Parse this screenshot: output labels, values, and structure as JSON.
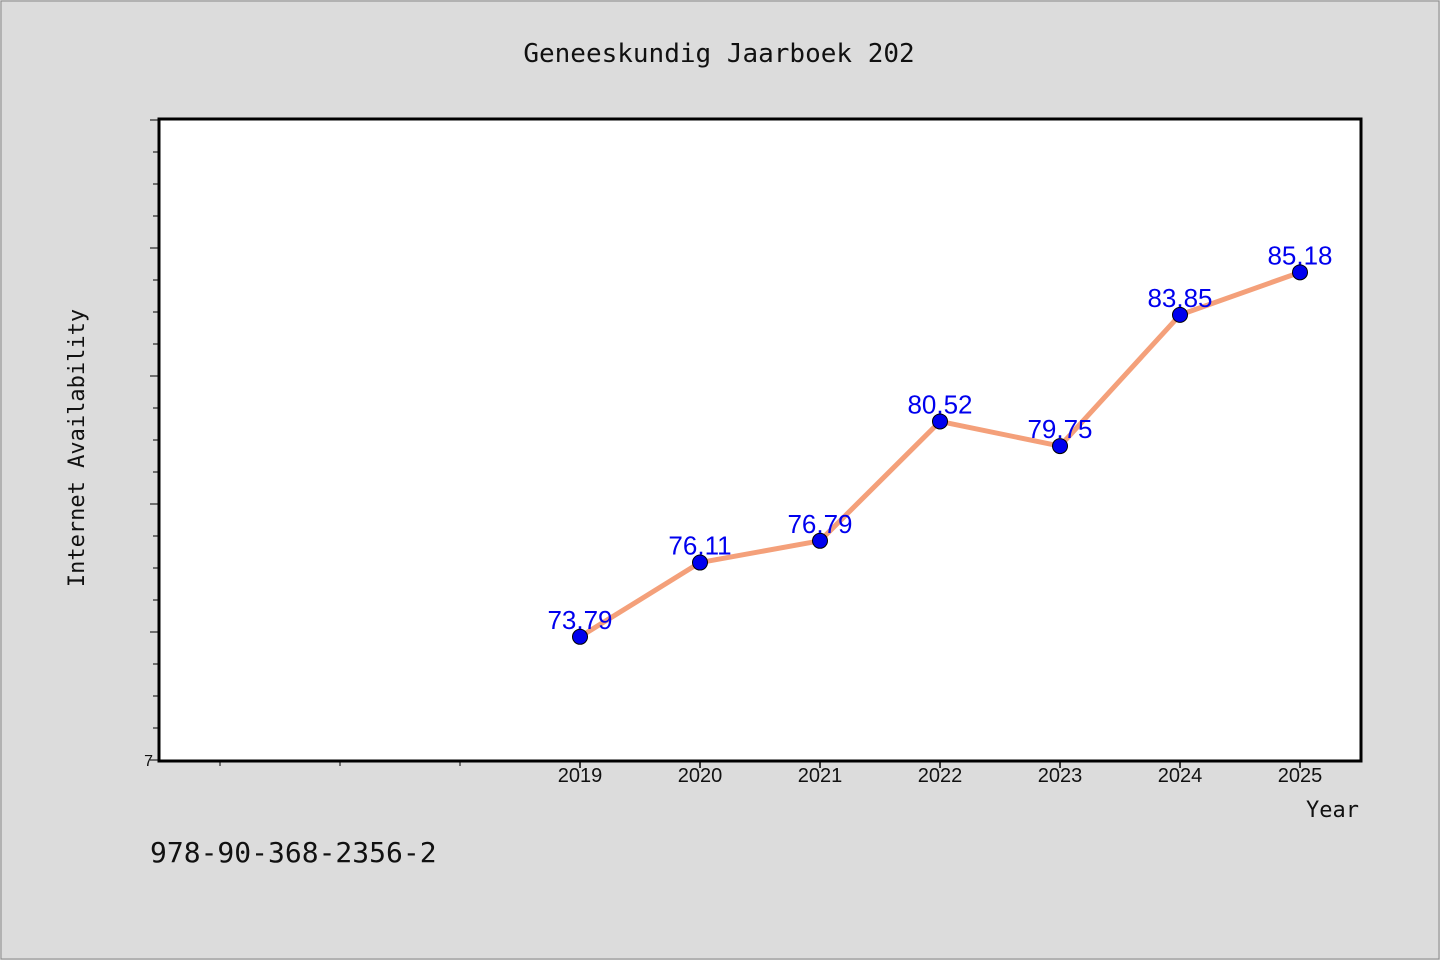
{
  "footer_text": "978-90-368-2356-2",
  "chart_data": {
    "type": "line",
    "title": "Geneeskundig Jaarboek 202",
    "xlabel": "Year",
    "ylabel": "Internet Availability",
    "categories": [
      "2019",
      "2020",
      "2021",
      "2022",
      "2023",
      "2024",
      "2025"
    ],
    "series": [
      {
        "values": [
          73.79,
          76.11,
          76.79,
          80.52,
          79.75,
          83.85,
          85.18
        ],
        "labels": [
          "73.79",
          "76.11",
          "76.79",
          "80.52",
          "79.75",
          "83.85",
          "85.18"
        ]
      }
    ],
    "y_tick_labels": [
      "7"
    ],
    "ylim": [
      69.94,
      89.94
    ],
    "grid": false,
    "legend": "none",
    "colors": {
      "line": "#f4a07a",
      "marker": "#0000ee",
      "label": "#0000ee"
    }
  }
}
